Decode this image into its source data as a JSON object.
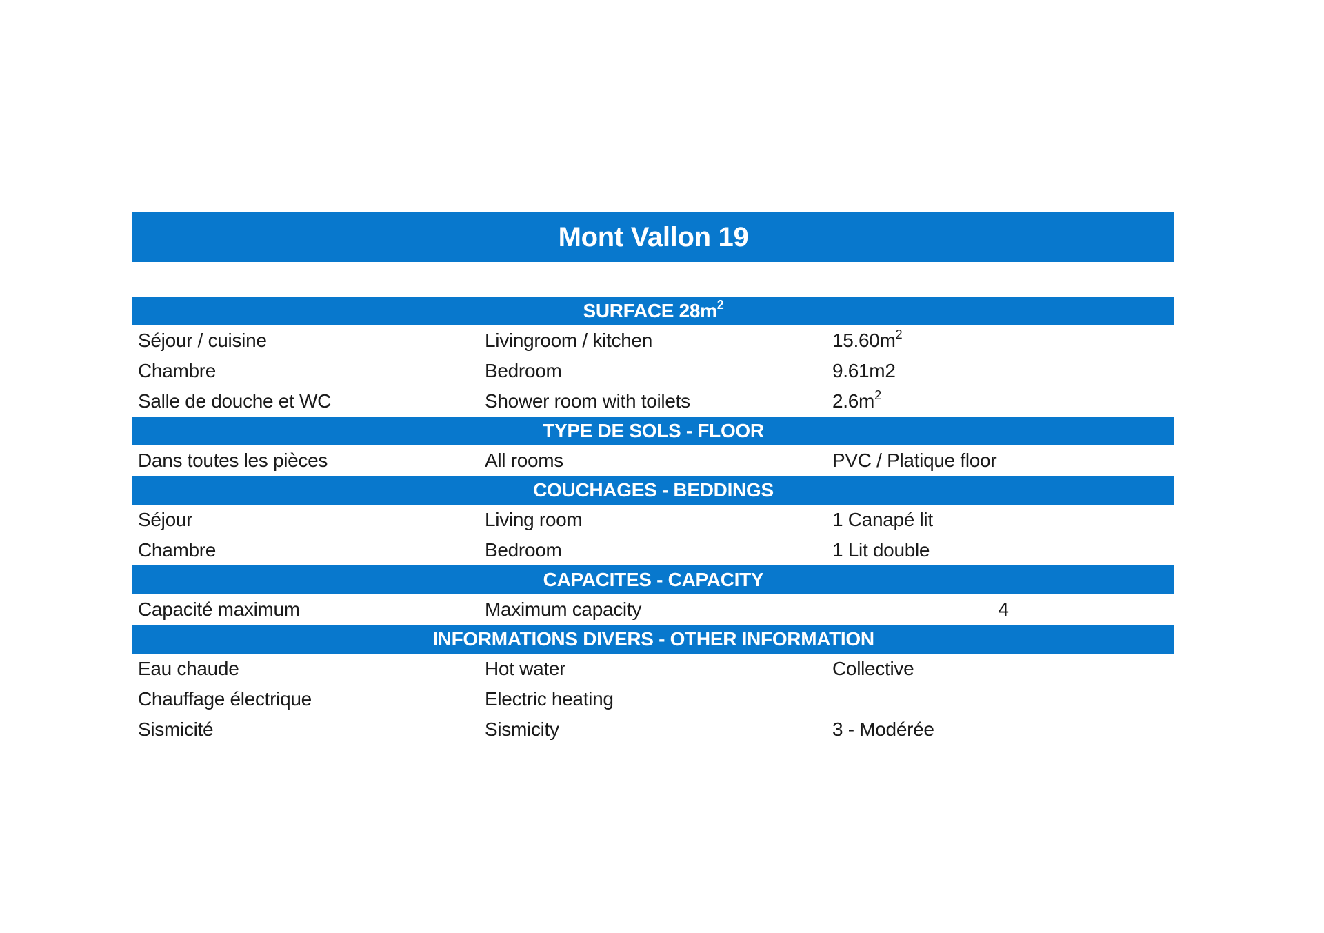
{
  "page": {
    "background_color": "#ffffff",
    "accent_color": "#0878cd",
    "text_color": "#1a1a1a",
    "header_text_color": "#ffffff"
  },
  "table": {
    "title": "Mont Vallon 19",
    "sections": [
      {
        "header": "SURFACE 28m",
        "header_sup": "2",
        "rows": [
          {
            "fr": "Séjour / cuisine",
            "en": "Livingroom / kitchen",
            "value": "15.60m",
            "value_sup": "2"
          },
          {
            "fr": "Chambre",
            "en": "Bedroom",
            "value": "9.61m2"
          },
          {
            "fr": "Salle de douche et WC",
            "en": "Shower room with toilets",
            "value": "2.6m",
            "value_sup": "2"
          }
        ]
      },
      {
        "header": "TYPE DE SOLS - FLOOR",
        "rows": [
          {
            "fr": "Dans toutes les pièces",
            "en": "All rooms",
            "value": "PVC / Platique floor"
          }
        ]
      },
      {
        "header": "COUCHAGES - BEDDINGS",
        "rows": [
          {
            "fr": "Séjour",
            "en": "Living room",
            "value": "1 Canapé lit"
          },
          {
            "fr": "Chambre",
            "en": "Bedroom",
            "value": "1 Lit double"
          }
        ]
      },
      {
        "header": "CAPACITES - CAPACITY",
        "rows": [
          {
            "fr": "Capacité maximum",
            "en": "Maximum capacity",
            "value": "4"
          }
        ]
      },
      {
        "header": "INFORMATIONS DIVERS - OTHER INFORMATION",
        "rows": [
          {
            "fr": "Eau chaude",
            "en": "Hot water",
            "value": "Collective"
          },
          {
            "fr": "Chauffage électrique",
            "en": "Electric heating",
            "value": ""
          },
          {
            "fr": "Sismicité",
            "en": "Sismicity",
            "value": "3 - Modérée"
          }
        ]
      }
    ]
  }
}
